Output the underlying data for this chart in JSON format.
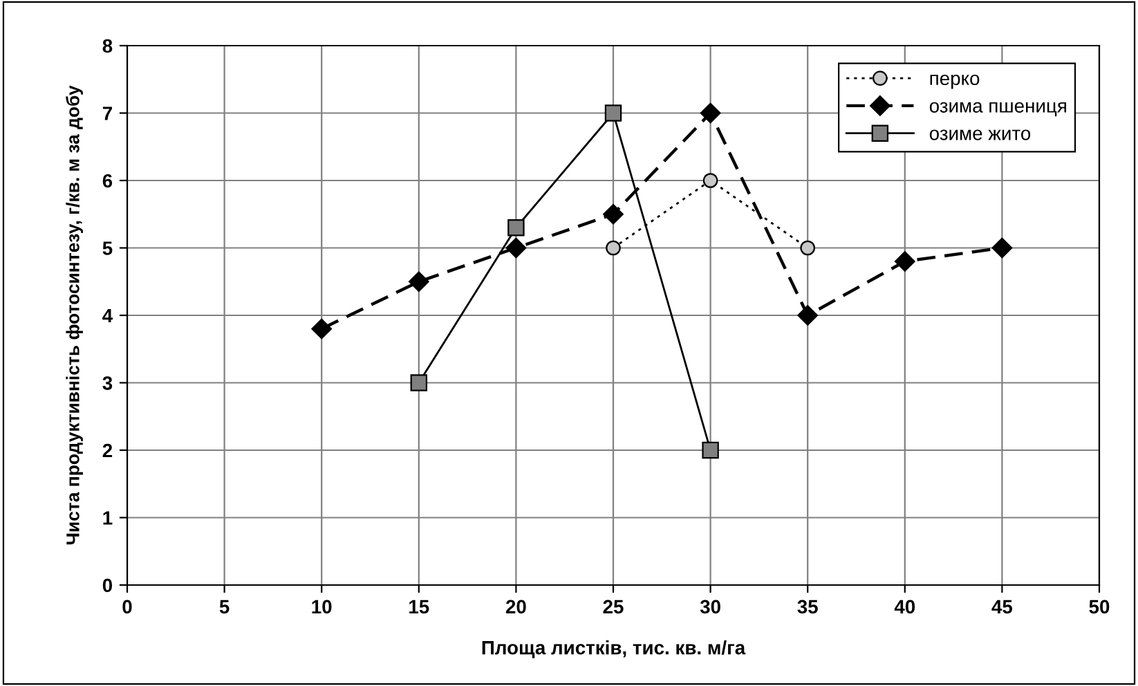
{
  "chart_data": {
    "type": "line",
    "xlabel": "Площа листків, тис. кв. м/га",
    "ylabel": "Чиста продуктивність фотосинтезу, г/кв. м за добу",
    "series": [
      {
        "name": "перко",
        "color": "#c8c8c8",
        "marker": "circle",
        "line_style": "dotted",
        "x": [
          25,
          30,
          35
        ],
        "values": [
          5,
          6,
          5
        ]
      },
      {
        "name": "озима пшениця",
        "color": "#000000",
        "marker": "diamond",
        "line_style": "dashed",
        "x": [
          10,
          15,
          20,
          25,
          30,
          35,
          40,
          45
        ],
        "values": [
          3.8,
          4.5,
          5,
          5.5,
          7,
          4,
          4.8,
          5
        ]
      },
      {
        "name": "озиме жито",
        "color": "#808080",
        "marker": "square",
        "line_style": "solid",
        "x": [
          15,
          20,
          25,
          30
        ],
        "values": [
          3,
          5.3,
          7,
          2
        ]
      }
    ],
    "xlim": [
      0,
      50
    ],
    "xticks": [
      0,
      5,
      10,
      15,
      20,
      25,
      30,
      35,
      40,
      45,
      50
    ],
    "ylim": [
      0,
      8
    ],
    "yticks": [
      0,
      1,
      2,
      3,
      4,
      5,
      6,
      7,
      8
    ],
    "grid": true,
    "legend": "top right"
  }
}
